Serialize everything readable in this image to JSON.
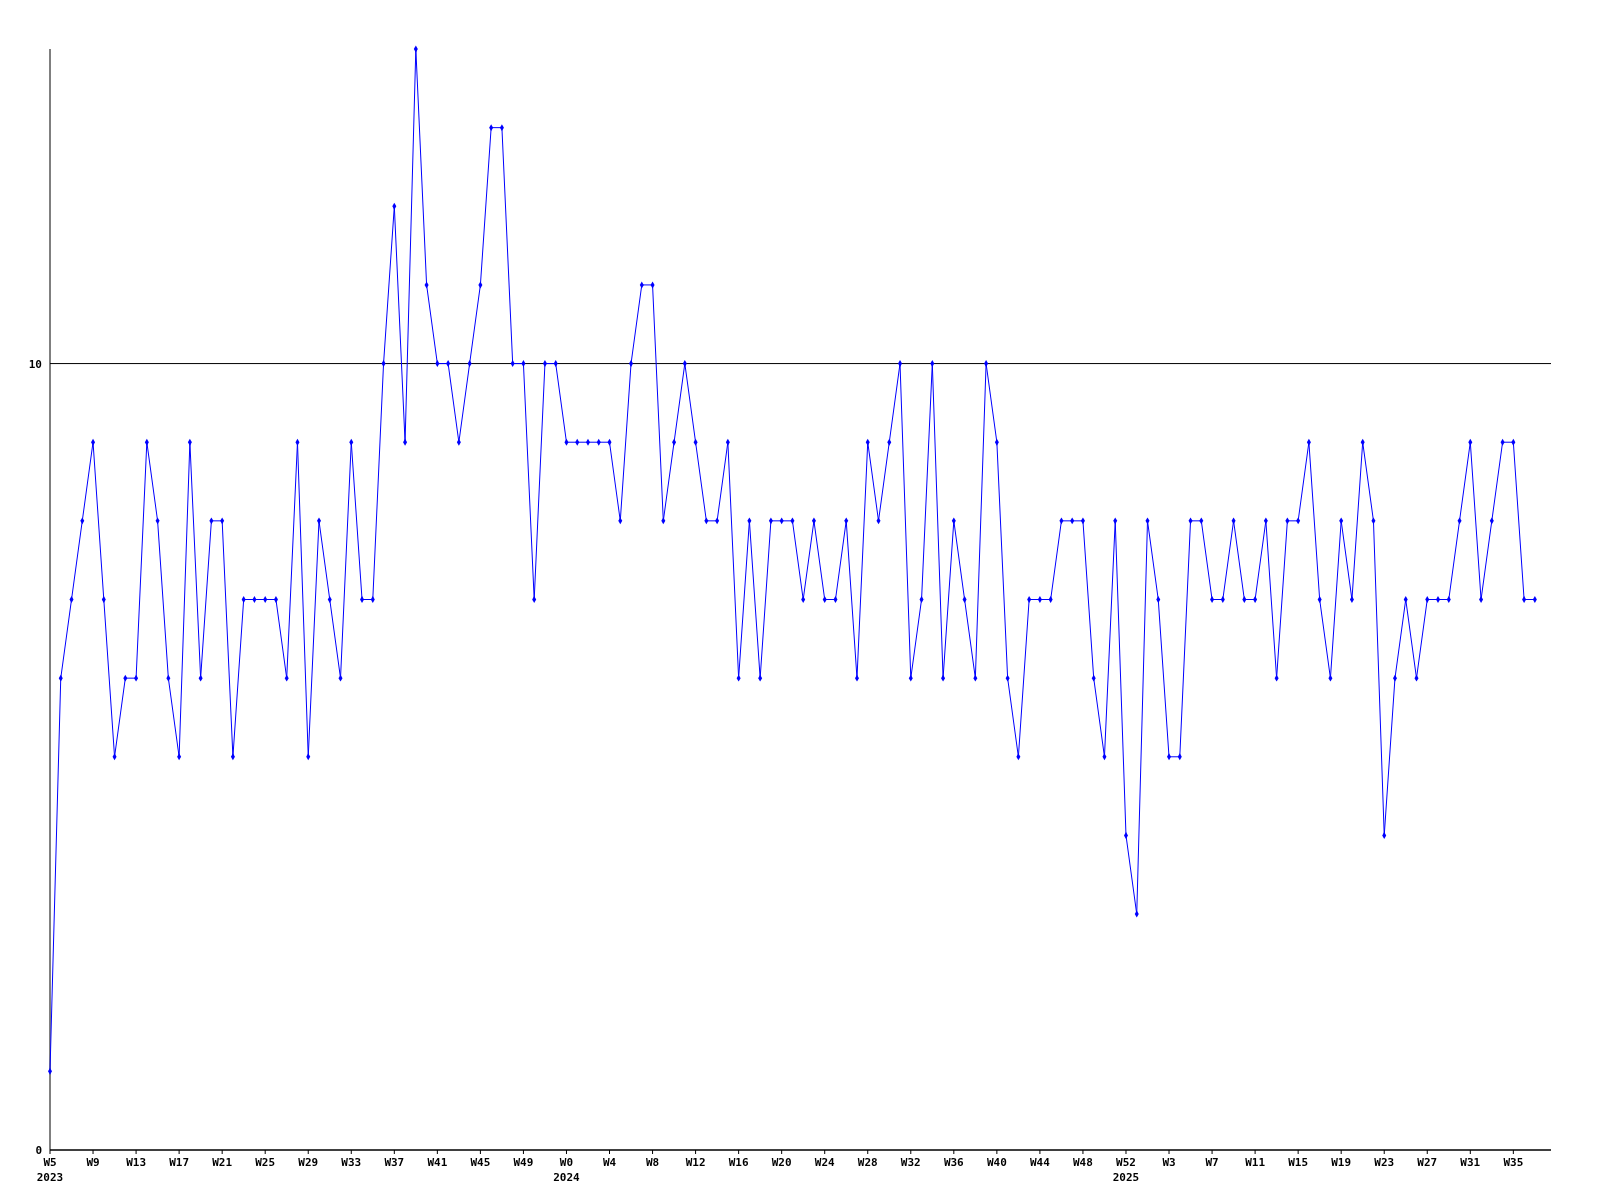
{
  "chart_data": {
    "type": "line",
    "marker": "diamond",
    "grid": "y",
    "ylim": [
      0,
      14
    ],
    "yticks": [
      0,
      10
    ],
    "categories": [
      "W5\n2023",
      null,
      null,
      null,
      "W9",
      null,
      null,
      null,
      "W13",
      null,
      null,
      null,
      "W17",
      null,
      null,
      null,
      "W21",
      null,
      null,
      null,
      "W25",
      null,
      null,
      null,
      "W29",
      null,
      null,
      null,
      "W33",
      null,
      null,
      null,
      "W37",
      null,
      null,
      null,
      "W41",
      null,
      null,
      null,
      "W45",
      null,
      null,
      null,
      "W49",
      null,
      null,
      null,
      "W0\n2024",
      null,
      null,
      null,
      "W4",
      null,
      null,
      null,
      "W8",
      null,
      null,
      null,
      "W12",
      null,
      null,
      null,
      "W16",
      null,
      null,
      null,
      "W20",
      null,
      null,
      null,
      "W24",
      null,
      null,
      null,
      "W28",
      null,
      null,
      null,
      "W32",
      null,
      null,
      null,
      "W36",
      null,
      null,
      null,
      "W40",
      null,
      null,
      null,
      "W44",
      null,
      null,
      null,
      "W48",
      null,
      null,
      null,
      "W52\n2025",
      null,
      null,
      null,
      "W3",
      null,
      null,
      null,
      "W7",
      null,
      null,
      null,
      "W11",
      null,
      null,
      null,
      "W15",
      null,
      null,
      null,
      "W19",
      null,
      null,
      null,
      "W23",
      null,
      null,
      null,
      "W27",
      null,
      null,
      null,
      "W31",
      null,
      null,
      null,
      "W35",
      null,
      null
    ],
    "series": [
      {
        "color": "#0000ff",
        "values": [
          1,
          6,
          7,
          8,
          9,
          7,
          5,
          6,
          6,
          9,
          8,
          6,
          5,
          9,
          6,
          8,
          8,
          5,
          7,
          7,
          7,
          7,
          6,
          9,
          5,
          8,
          7,
          6,
          9,
          7,
          7,
          10,
          12,
          9,
          14,
          11,
          10,
          10,
          9,
          10,
          11,
          13,
          13,
          10,
          10,
          7,
          10,
          10,
          9,
          9,
          9,
          9,
          9,
          8,
          10,
          11,
          11,
          8,
          9,
          10,
          9,
          8,
          8,
          9,
          6,
          8,
          6,
          8,
          8,
          8,
          7,
          8,
          7,
          7,
          8,
          6,
          9,
          8,
          9,
          10,
          6,
          7,
          10,
          6,
          8,
          7,
          6,
          10,
          9,
          6,
          5,
          7,
          7,
          7,
          8,
          8,
          8,
          6,
          5,
          8,
          4,
          3,
          8,
          7,
          5,
          5,
          8,
          8,
          7,
          7,
          8,
          7,
          7,
          8,
          6,
          8,
          8,
          9,
          7,
          6,
          8,
          7,
          9,
          8,
          4,
          6,
          7,
          6,
          7,
          7,
          7,
          8,
          9,
          7,
          8,
          9,
          9,
          7,
          7
        ]
      }
    ]
  }
}
